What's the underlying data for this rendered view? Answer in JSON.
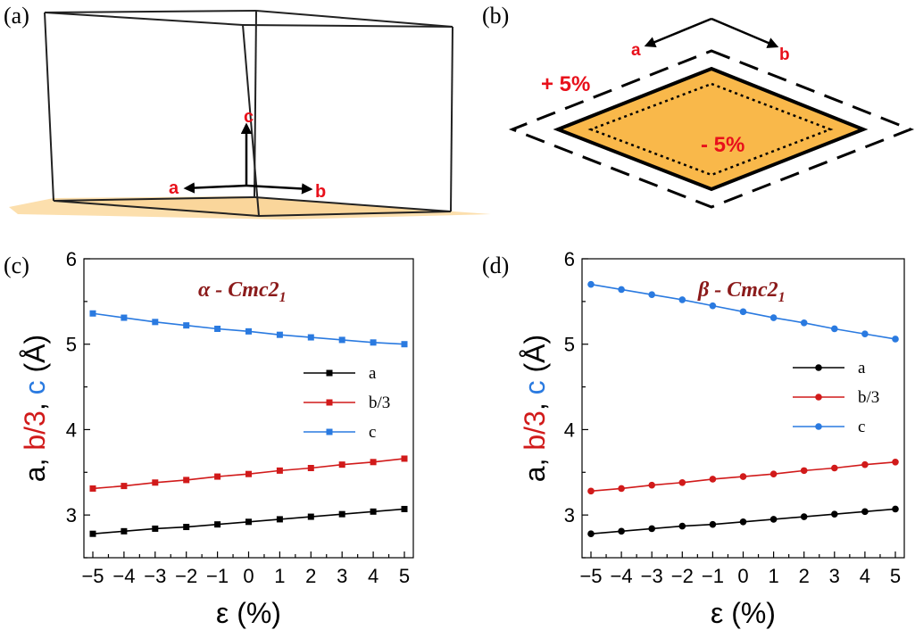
{
  "panels": {
    "a": {
      "label": "(a)",
      "axis_labels": {
        "a": "a",
        "b": "b",
        "c": "c"
      }
    },
    "b": {
      "label": "(b)",
      "axis_labels": {
        "a": "a",
        "b": "b"
      },
      "plus_label": "+ 5%",
      "minus_label": "- 5%"
    },
    "c": {
      "label": "(c)"
    },
    "d": {
      "label": "(d)"
    }
  },
  "colors": {
    "a": "#000000",
    "b3": "#d11a1a",
    "c": "#2a7ae0",
    "title": "#8b1a1a",
    "substrate": "#f9b84a"
  },
  "chart_data": [
    {
      "type": "line",
      "panel": "c",
      "title": "α - Cmc2",
      "title_subscript": "1",
      "xlabel": "ε (%)",
      "ylabel_parts": [
        "a, ",
        "b/3",
        ", ",
        "c",
        " (Å)"
      ],
      "xlim": [
        -5,
        5
      ],
      "ylim": [
        2.5,
        6
      ],
      "xticks": [
        "−5",
        "−4",
        "−3",
        "−2",
        "−1",
        "0",
        "1",
        "2",
        "3",
        "4",
        "5"
      ],
      "yticks": [
        "3",
        "4",
        "5",
        "6"
      ],
      "marker": "square",
      "x": [
        -5,
        -4,
        -3,
        -2,
        -1,
        0,
        1,
        2,
        3,
        4,
        5
      ],
      "series": [
        {
          "name": "a",
          "values": [
            2.78,
            2.81,
            2.84,
            2.86,
            2.89,
            2.92,
            2.95,
            2.98,
            3.01,
            3.04,
            3.07
          ]
        },
        {
          "name": "b/3",
          "values": [
            3.31,
            3.34,
            3.38,
            3.41,
            3.45,
            3.48,
            3.52,
            3.55,
            3.59,
            3.62,
            3.66
          ]
        },
        {
          "name": "c",
          "values": [
            5.36,
            5.31,
            5.26,
            5.22,
            5.18,
            5.15,
            5.11,
            5.08,
            5.05,
            5.02,
            5.0
          ]
        }
      ]
    },
    {
      "type": "line",
      "panel": "d",
      "title": "β - Cmc2",
      "title_subscript": "1",
      "xlabel": "ε (%)",
      "ylabel_parts": [
        "a, ",
        "b/3",
        ", ",
        "c",
        " (Å)"
      ],
      "xlim": [
        -5,
        5
      ],
      "ylim": [
        2.5,
        6
      ],
      "xticks": [
        "−5",
        "−4",
        "−3",
        "−2",
        "−1",
        "0",
        "1",
        "2",
        "3",
        "4",
        "5"
      ],
      "yticks": [
        "3",
        "4",
        "5",
        "6"
      ],
      "marker": "circle",
      "x": [
        -5,
        -4,
        -3,
        -2,
        -1,
        0,
        1,
        2,
        3,
        4,
        5
      ],
      "series": [
        {
          "name": "a",
          "values": [
            2.78,
            2.81,
            2.84,
            2.87,
            2.89,
            2.92,
            2.95,
            2.98,
            3.01,
            3.04,
            3.07
          ]
        },
        {
          "name": "b/3",
          "values": [
            3.28,
            3.31,
            3.35,
            3.38,
            3.42,
            3.45,
            3.48,
            3.52,
            3.55,
            3.59,
            3.62
          ]
        },
        {
          "name": "c",
          "values": [
            5.7,
            5.64,
            5.58,
            5.52,
            5.45,
            5.38,
            5.31,
            5.25,
            5.18,
            5.12,
            5.06
          ]
        }
      ]
    }
  ]
}
